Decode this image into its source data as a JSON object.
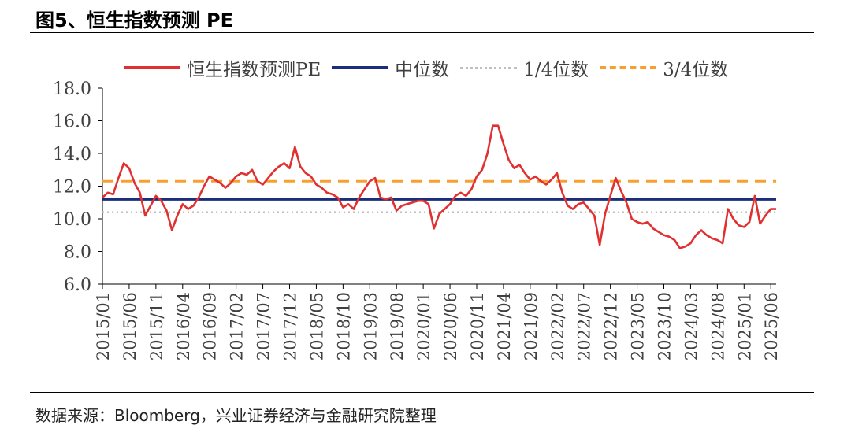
{
  "figure": {
    "title": "图5、恒生指数预测 PE",
    "source": "数据来源：Bloomberg，兴业证券经济与金融研究院整理"
  },
  "chart_data": {
    "type": "line",
    "ylim": [
      6.0,
      18.0
    ],
    "yticks": [
      "6.0",
      "8.0",
      "10.0",
      "12.0",
      "14.0",
      "16.0",
      "18.0"
    ],
    "x_range": [
      "2015/01",
      "2025/07"
    ],
    "xticks": [
      "2015/01",
      "2015/06",
      "2015/11",
      "2016/04",
      "2016/09",
      "2017/02",
      "2017/07",
      "2017/12",
      "2018/05",
      "2018/10",
      "2019/03",
      "2019/08",
      "2020/01",
      "2020/06",
      "2020/11",
      "2021/04",
      "2021/09",
      "2022/02",
      "2022/07",
      "2022/12",
      "2023/05",
      "2023/10",
      "2024/03",
      "2024/08",
      "2025/01",
      "2025/06"
    ],
    "grid": false,
    "legend_position": "top",
    "series": [
      {
        "name": "恒生指数预测PE",
        "color": "#e03030",
        "style": "solid",
        "points": [
          [
            "2015/01",
            11.3
          ],
          [
            "2015/02",
            11.6
          ],
          [
            "2015/03",
            11.5
          ],
          [
            "2015/04",
            12.5
          ],
          [
            "2015/05",
            13.4
          ],
          [
            "2015/06",
            13.1
          ],
          [
            "2015/07",
            12.2
          ],
          [
            "2015/08",
            11.6
          ],
          [
            "2015/09",
            10.2
          ],
          [
            "2015/10",
            10.8
          ],
          [
            "2015/11",
            11.4
          ],
          [
            "2015/12",
            11.1
          ],
          [
            "2016/01",
            10.5
          ],
          [
            "2016/02",
            9.3
          ],
          [
            "2016/03",
            10.2
          ],
          [
            "2016/04",
            10.9
          ],
          [
            "2016/05",
            10.6
          ],
          [
            "2016/06",
            10.8
          ],
          [
            "2016/07",
            11.3
          ],
          [
            "2016/08",
            12.0
          ],
          [
            "2016/09",
            12.6
          ],
          [
            "2016/10",
            12.4
          ],
          [
            "2016/11",
            12.2
          ],
          [
            "2016/12",
            11.9
          ],
          [
            "2017/01",
            12.2
          ],
          [
            "2017/02",
            12.6
          ],
          [
            "2017/03",
            12.8
          ],
          [
            "2017/04",
            12.7
          ],
          [
            "2017/05",
            13.0
          ],
          [
            "2017/06",
            12.3
          ],
          [
            "2017/07",
            12.1
          ],
          [
            "2017/08",
            12.5
          ],
          [
            "2017/09",
            12.9
          ],
          [
            "2017/10",
            13.2
          ],
          [
            "2017/11",
            13.4
          ],
          [
            "2017/12",
            13.1
          ],
          [
            "2018/01",
            14.4
          ],
          [
            "2018/02",
            13.2
          ],
          [
            "2018/03",
            12.8
          ],
          [
            "2018/04",
            12.6
          ],
          [
            "2018/05",
            12.1
          ],
          [
            "2018/06",
            11.9
          ],
          [
            "2018/07",
            11.6
          ],
          [
            "2018/08",
            11.5
          ],
          [
            "2018/09",
            11.3
          ],
          [
            "2018/10",
            10.7
          ],
          [
            "2018/11",
            10.9
          ],
          [
            "2018/12",
            10.6
          ],
          [
            "2019/01",
            11.3
          ],
          [
            "2019/02",
            11.8
          ],
          [
            "2019/03",
            12.3
          ],
          [
            "2019/04",
            12.5
          ],
          [
            "2019/05",
            11.3
          ],
          [
            "2019/06",
            11.2
          ],
          [
            "2019/07",
            11.3
          ],
          [
            "2019/08",
            10.5
          ],
          [
            "2019/09",
            10.8
          ],
          [
            "2019/10",
            10.9
          ],
          [
            "2019/11",
            11.0
          ],
          [
            "2019/12",
            11.1
          ],
          [
            "2020/01",
            11.1
          ],
          [
            "2020/02",
            10.9
          ],
          [
            "2020/03",
            9.4
          ],
          [
            "2020/04",
            10.3
          ],
          [
            "2020/05",
            10.6
          ],
          [
            "2020/06",
            10.9
          ],
          [
            "2020/07",
            11.4
          ],
          [
            "2020/08",
            11.6
          ],
          [
            "2020/09",
            11.4
          ],
          [
            "2020/10",
            11.8
          ],
          [
            "2020/11",
            12.6
          ],
          [
            "2020/12",
            13.0
          ],
          [
            "2021/01",
            14.0
          ],
          [
            "2021/02",
            15.7
          ],
          [
            "2021/03",
            15.7
          ],
          [
            "2021/04",
            14.6
          ],
          [
            "2021/05",
            13.6
          ],
          [
            "2021/06",
            13.1
          ],
          [
            "2021/07",
            13.3
          ],
          [
            "2021/08",
            12.8
          ],
          [
            "2021/09",
            12.4
          ],
          [
            "2021/10",
            12.6
          ],
          [
            "2021/11",
            12.3
          ],
          [
            "2021/12",
            12.1
          ],
          [
            "2022/01",
            12.4
          ],
          [
            "2022/02",
            12.8
          ],
          [
            "2022/03",
            11.6
          ],
          [
            "2022/04",
            10.8
          ],
          [
            "2022/05",
            10.6
          ],
          [
            "2022/06",
            10.9
          ],
          [
            "2022/07",
            11.0
          ],
          [
            "2022/08",
            10.6
          ],
          [
            "2022/09",
            10.2
          ],
          [
            "2022/10",
            8.4
          ],
          [
            "2022/11",
            10.3
          ],
          [
            "2022/12",
            11.4
          ],
          [
            "2023/01",
            12.5
          ],
          [
            "2023/02",
            11.7
          ],
          [
            "2023/03",
            11.0
          ],
          [
            "2023/04",
            10.0
          ],
          [
            "2023/05",
            9.8
          ],
          [
            "2023/06",
            9.7
          ],
          [
            "2023/07",
            9.8
          ],
          [
            "2023/08",
            9.4
          ],
          [
            "2023/09",
            9.2
          ],
          [
            "2023/10",
            9.0
          ],
          [
            "2023/11",
            8.9
          ],
          [
            "2023/12",
            8.7
          ],
          [
            "2024/01",
            8.2
          ],
          [
            "2024/02",
            8.3
          ],
          [
            "2024/03",
            8.5
          ],
          [
            "2024/04",
            9.0
          ],
          [
            "2024/05",
            9.3
          ],
          [
            "2024/06",
            9.0
          ],
          [
            "2024/07",
            8.8
          ],
          [
            "2024/08",
            8.7
          ],
          [
            "2024/09",
            8.5
          ],
          [
            "2024/10",
            10.6
          ],
          [
            "2024/11",
            10.0
          ],
          [
            "2024/12",
            9.6
          ],
          [
            "2025/01",
            9.5
          ],
          [
            "2025/02",
            9.8
          ],
          [
            "2025/03",
            11.4
          ],
          [
            "2025/04",
            9.7
          ],
          [
            "2025/05",
            10.2
          ],
          [
            "2025/06",
            10.6
          ],
          [
            "2025/07",
            10.6
          ]
        ]
      },
      {
        "name": "中位数",
        "color": "#1a2f7a",
        "style": "solid",
        "value": 11.2
      },
      {
        "name": "1/4位数",
        "color": "#bfbfbf",
        "style": "dotted",
        "value": 10.4
      },
      {
        "name": "3/4位数",
        "color": "#f5a030",
        "style": "dashed",
        "value": 12.3
      }
    ]
  }
}
